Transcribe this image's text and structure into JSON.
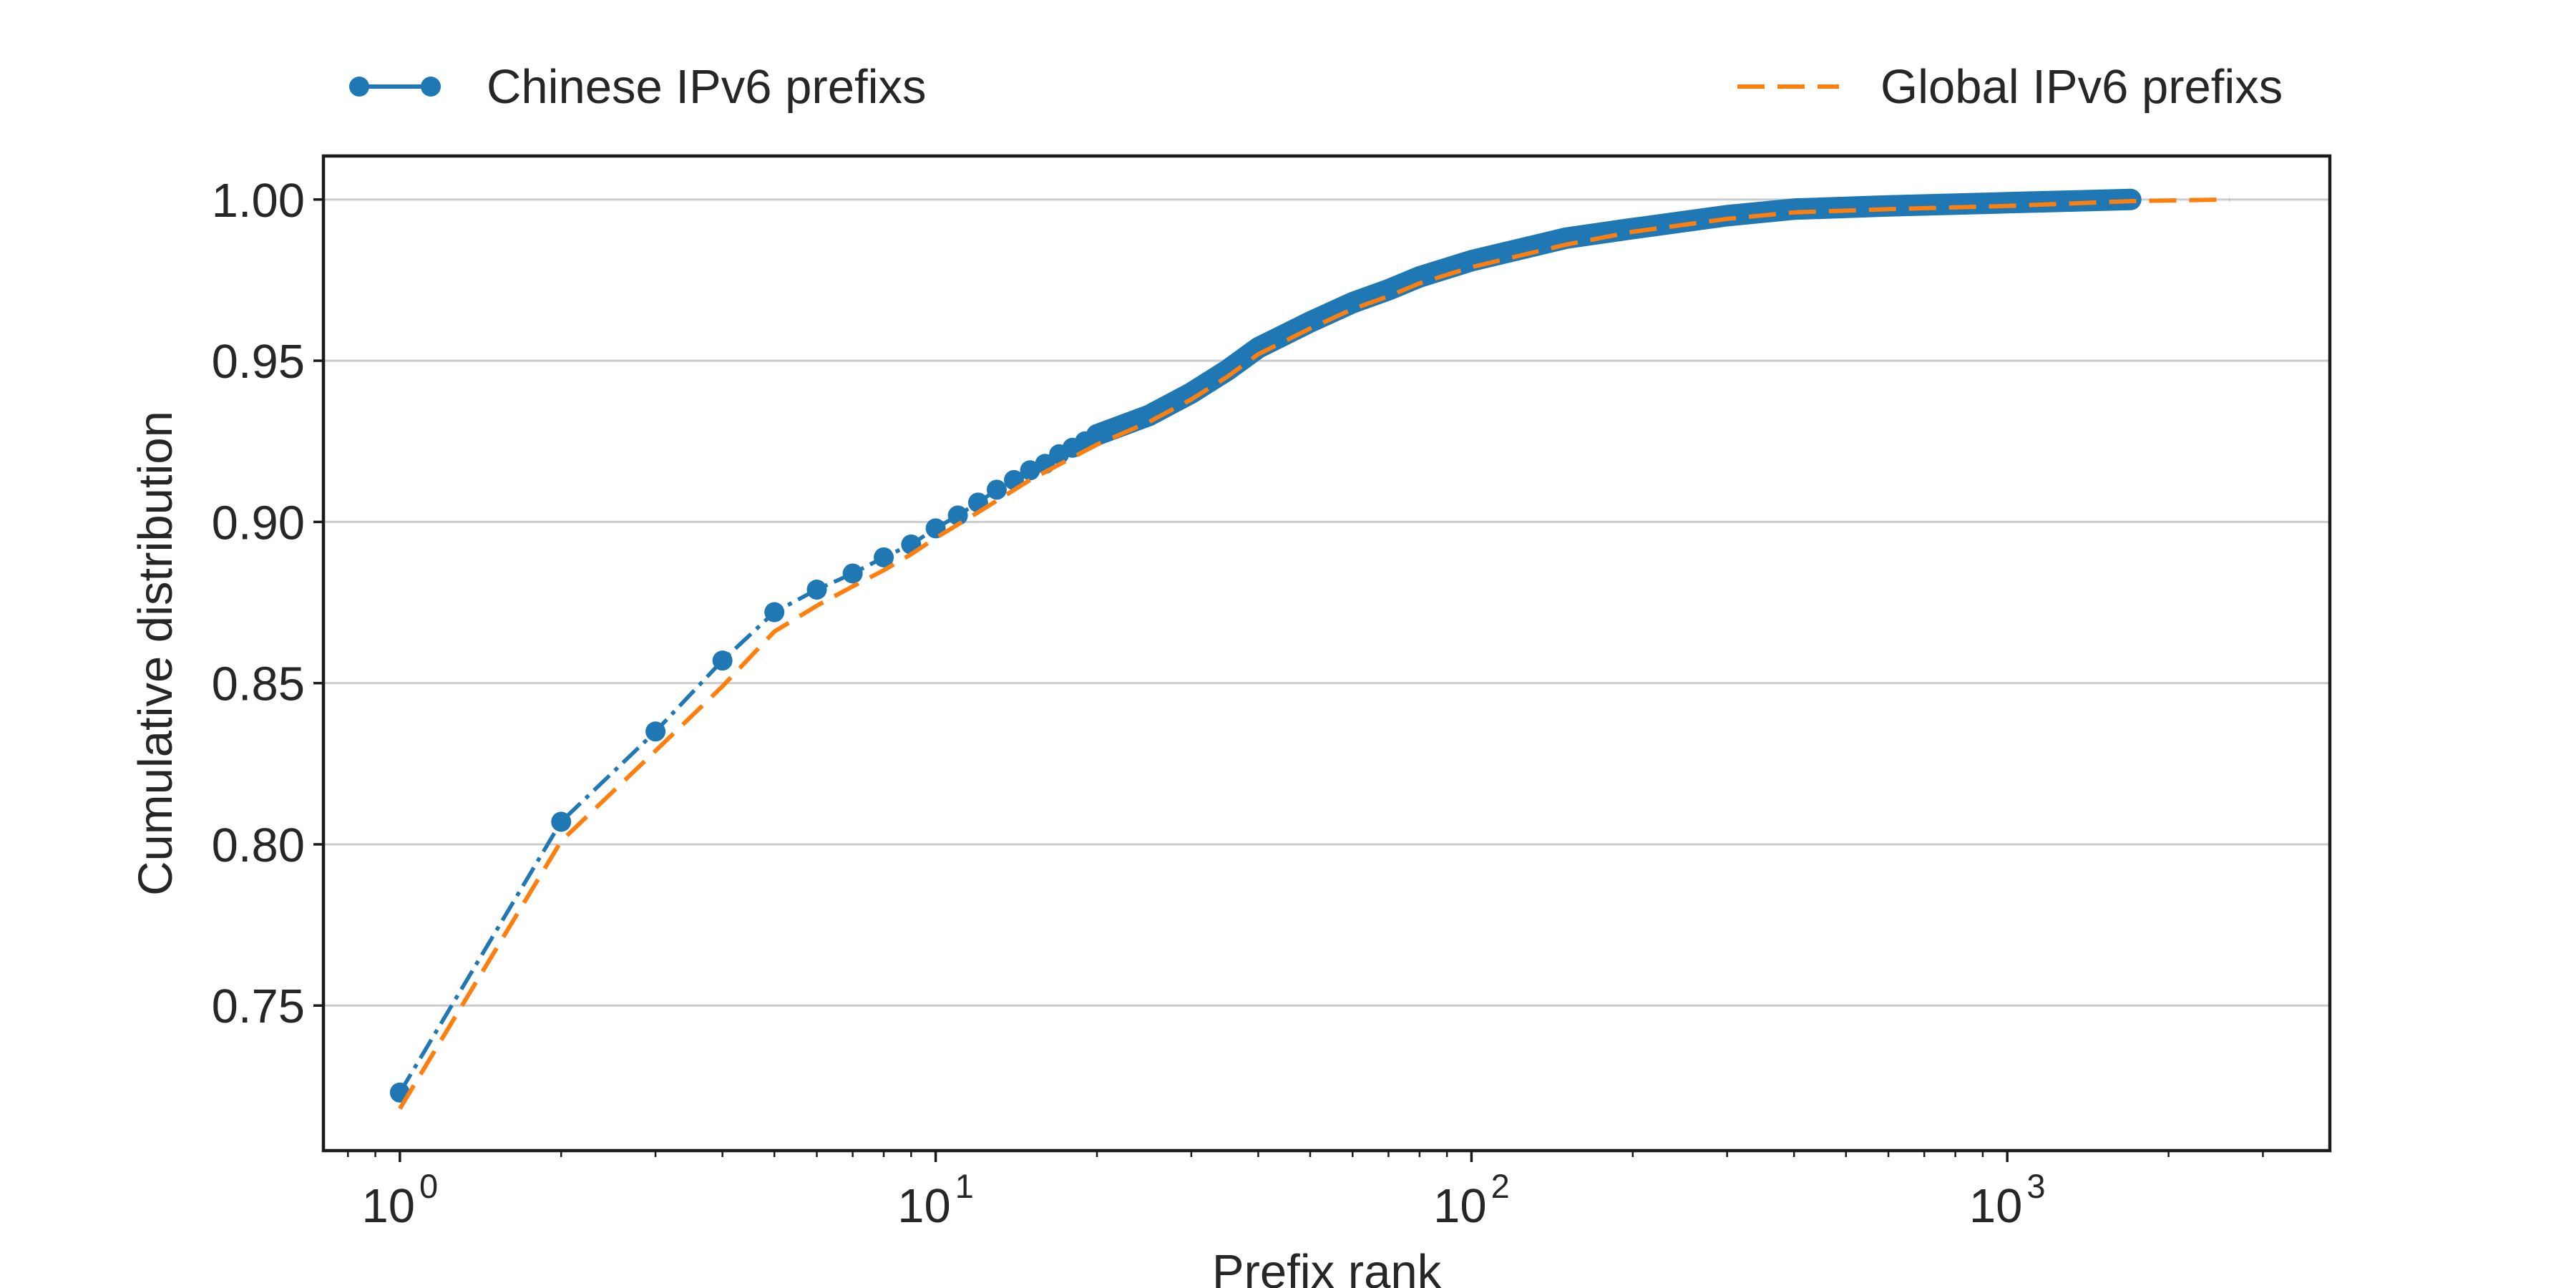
{
  "chart_data": {
    "type": "line",
    "title": "",
    "xlabel": "Prefix rank",
    "ylabel": "Cumulative distribution",
    "x_scale": "log",
    "xlim": [
      0.72,
      4000
    ],
    "ylim": [
      0.705,
      1.0135
    ],
    "grid": "horizontal",
    "legend_placement": "top",
    "x_tick_labels": [
      {
        "value": 1,
        "base": "10",
        "exp": "0"
      },
      {
        "value": 10,
        "base": "10",
        "exp": "1"
      },
      {
        "value": 100,
        "base": "10",
        "exp": "2"
      },
      {
        "value": 1000,
        "base": "10",
        "exp": "3"
      }
    ],
    "y_ticks": [
      0.75,
      0.8,
      0.85,
      0.9,
      0.95,
      1.0
    ],
    "y_tick_labels": [
      "0.75",
      "0.80",
      "0.85",
      "0.90",
      "0.95",
      "1.00"
    ],
    "series": [
      {
        "name": "Chinese IPv6 prefixs",
        "color": "#1f77b4",
        "line_style": "dash-dot",
        "marker": "circle",
        "x_max": 1700,
        "discrete_points": [
          [
            1,
            0.723
          ],
          [
            2,
            0.807
          ],
          [
            3,
            0.835
          ],
          [
            4,
            0.857
          ],
          [
            5,
            0.872
          ],
          [
            6,
            0.879
          ],
          [
            7,
            0.884
          ],
          [
            8,
            0.889
          ],
          [
            9,
            0.893
          ],
          [
            10,
            0.898
          ],
          [
            11,
            0.902
          ],
          [
            12,
            0.906
          ],
          [
            13,
            0.91
          ],
          [
            14,
            0.913
          ],
          [
            15,
            0.916
          ],
          [
            16,
            0.918
          ],
          [
            17,
            0.921
          ],
          [
            18,
            0.923
          ],
          [
            19,
            0.925
          ],
          [
            20,
            0.927
          ]
        ],
        "curve": [
          [
            20,
            0.927
          ],
          [
            25,
            0.933
          ],
          [
            30,
            0.94
          ],
          [
            35,
            0.947
          ],
          [
            40,
            0.954
          ],
          [
            50,
            0.962
          ],
          [
            60,
            0.968
          ],
          [
            70,
            0.972
          ],
          [
            80,
            0.976
          ],
          [
            100,
            0.981
          ],
          [
            150,
            0.988
          ],
          [
            200,
            0.991
          ],
          [
            300,
            0.995
          ],
          [
            400,
            0.997
          ],
          [
            600,
            0.998
          ],
          [
            1000,
            0.999
          ],
          [
            1700,
            1.0
          ]
        ]
      },
      {
        "name": "Global IPv6 prefixs",
        "color": "#ff7f0e",
        "line_style": "dashed",
        "marker": "none",
        "points": [
          [
            1,
            0.718
          ],
          [
            2,
            0.801
          ],
          [
            3,
            0.829
          ],
          [
            4,
            0.849
          ],
          [
            5,
            0.866
          ],
          [
            6,
            0.874
          ],
          [
            7,
            0.88
          ],
          [
            8,
            0.885
          ],
          [
            9,
            0.89
          ],
          [
            10,
            0.895
          ],
          [
            12,
            0.903
          ],
          [
            15,
            0.913
          ],
          [
            20,
            0.924
          ],
          [
            25,
            0.931
          ],
          [
            30,
            0.938
          ],
          [
            35,
            0.945
          ],
          [
            40,
            0.952
          ],
          [
            50,
            0.96
          ],
          [
            60,
            0.966
          ],
          [
            70,
            0.97
          ],
          [
            80,
            0.974
          ],
          [
            100,
            0.979
          ],
          [
            150,
            0.986
          ],
          [
            200,
            0.99
          ],
          [
            300,
            0.994
          ],
          [
            400,
            0.996
          ],
          [
            600,
            0.997
          ],
          [
            1000,
            0.998
          ],
          [
            1700,
            0.9995
          ],
          [
            2600,
            1.0
          ]
        ]
      }
    ]
  }
}
